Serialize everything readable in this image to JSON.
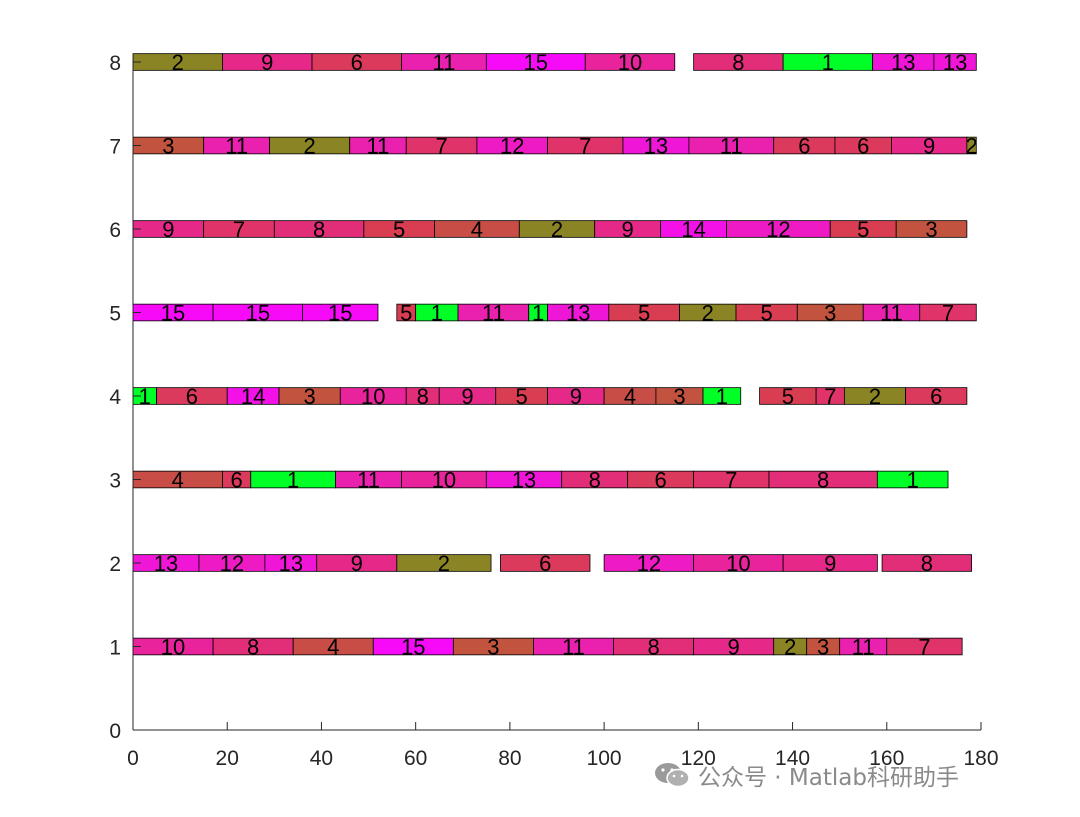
{
  "chart_data": {
    "type": "gantt",
    "title": "",
    "xlabel": "",
    "ylabel": "",
    "xlim": [
      0,
      180
    ],
    "ylim": [
      0,
      8
    ],
    "xticks": [
      "0",
      "20",
      "40",
      "60",
      "80",
      "100",
      "120",
      "140",
      "160",
      "180"
    ],
    "yticks": [
      "0",
      "1",
      "2",
      "3",
      "4",
      "5",
      "6",
      "7",
      "8"
    ],
    "bar_height": 0.2,
    "colors": {
      "1": "#00ff27",
      "2": "#8b8424",
      "3": "#c2533f",
      "4": "#c84d47",
      "5": "#d83d52",
      "6": "#dc3a5c",
      "7": "#e0336a",
      "8": "#e22d78",
      "9": "#e62889",
      "10": "#e8239c",
      "11": "#ea20ae",
      "12": "#ee1ac4",
      "13": "#f016d7",
      "14": "#f411e8",
      "15": "#f70af7"
    },
    "machines": [
      {
        "machine": 1,
        "tasks": [
          {
            "job": 10,
            "start": 0,
            "end": 17
          },
          {
            "job": 8,
            "start": 17,
            "end": 34
          },
          {
            "job": 4,
            "start": 34,
            "end": 51
          },
          {
            "job": 15,
            "start": 51,
            "end": 68
          },
          {
            "job": 3,
            "start": 68,
            "end": 85
          },
          {
            "job": 11,
            "start": 85,
            "end": 102
          },
          {
            "job": 8,
            "start": 102,
            "end": 119
          },
          {
            "job": 9,
            "start": 119,
            "end": 136
          },
          {
            "job": 2,
            "start": 136,
            "end": 143
          },
          {
            "job": 3,
            "start": 143,
            "end": 150
          },
          {
            "job": 11,
            "start": 150,
            "end": 160
          },
          {
            "job": 7,
            "start": 160,
            "end": 176
          }
        ]
      },
      {
        "machine": 2,
        "tasks": [
          {
            "job": 13,
            "start": 0,
            "end": 14
          },
          {
            "job": 12,
            "start": 14,
            "end": 28
          },
          {
            "job": 13,
            "start": 28,
            "end": 39
          },
          {
            "job": 9,
            "start": 39,
            "end": 56
          },
          {
            "job": 2,
            "start": 56,
            "end": 76
          },
          {
            "job": 6,
            "start": 78,
            "end": 97
          },
          {
            "job": 12,
            "start": 100,
            "end": 119
          },
          {
            "job": 10,
            "start": 119,
            "end": 138
          },
          {
            "job": 9,
            "start": 138,
            "end": 158
          },
          {
            "job": 8,
            "start": 159,
            "end": 178
          }
        ]
      },
      {
        "machine": 3,
        "tasks": [
          {
            "job": 4,
            "start": 0,
            "end": 19
          },
          {
            "job": 6,
            "start": 19,
            "end": 25
          },
          {
            "job": 1,
            "start": 25,
            "end": 43
          },
          {
            "job": 11,
            "start": 43,
            "end": 57
          },
          {
            "job": 10,
            "start": 57,
            "end": 75
          },
          {
            "job": 13,
            "start": 75,
            "end": 91
          },
          {
            "job": 8,
            "start": 91,
            "end": 105
          },
          {
            "job": 6,
            "start": 105,
            "end": 119
          },
          {
            "job": 7,
            "start": 119,
            "end": 135
          },
          {
            "job": 8,
            "start": 135,
            "end": 158
          },
          {
            "job": 1,
            "start": 158,
            "end": 173
          }
        ]
      },
      {
        "machine": 4,
        "tasks": [
          {
            "job": 1,
            "start": 0,
            "end": 5
          },
          {
            "job": 6,
            "start": 5,
            "end": 20
          },
          {
            "job": 14,
            "start": 20,
            "end": 31
          },
          {
            "job": 3,
            "start": 31,
            "end": 44
          },
          {
            "job": 10,
            "start": 44,
            "end": 58
          },
          {
            "job": 8,
            "start": 58,
            "end": 65
          },
          {
            "job": 9,
            "start": 65,
            "end": 77
          },
          {
            "job": 5,
            "start": 77,
            "end": 88
          },
          {
            "job": 9,
            "start": 88,
            "end": 100
          },
          {
            "job": 4,
            "start": 100,
            "end": 111
          },
          {
            "job": 3,
            "start": 111,
            "end": 121
          },
          {
            "job": 1,
            "start": 121,
            "end": 129
          },
          {
            "job": 5,
            "start": 133,
            "end": 145
          },
          {
            "job": 7,
            "start": 145,
            "end": 151
          },
          {
            "job": 2,
            "start": 151,
            "end": 164
          },
          {
            "job": 6,
            "start": 164,
            "end": 177
          }
        ]
      },
      {
        "machine": 5,
        "tasks": [
          {
            "job": 15,
            "start": 0,
            "end": 17
          },
          {
            "job": 15,
            "start": 17,
            "end": 36
          },
          {
            "job": 15,
            "start": 36,
            "end": 52
          },
          {
            "job": 5,
            "start": 56,
            "end": 60
          },
          {
            "job": 1,
            "start": 60,
            "end": 69
          },
          {
            "job": 11,
            "start": 69,
            "end": 84
          },
          {
            "job": 1,
            "start": 84,
            "end": 88
          },
          {
            "job": 13,
            "start": 88,
            "end": 101
          },
          {
            "job": 5,
            "start": 101,
            "end": 116
          },
          {
            "job": 2,
            "start": 116,
            "end": 128
          },
          {
            "job": 5,
            "start": 128,
            "end": 141
          },
          {
            "job": 3,
            "start": 141,
            "end": 155
          },
          {
            "job": 11,
            "start": 155,
            "end": 167
          },
          {
            "job": 7,
            "start": 167,
            "end": 179
          }
        ]
      },
      {
        "machine": 6,
        "tasks": [
          {
            "job": 9,
            "start": 0,
            "end": 15
          },
          {
            "job": 7,
            "start": 15,
            "end": 30
          },
          {
            "job": 8,
            "start": 30,
            "end": 49
          },
          {
            "job": 5,
            "start": 49,
            "end": 64
          },
          {
            "job": 4,
            "start": 64,
            "end": 82
          },
          {
            "job": 2,
            "start": 82,
            "end": 98
          },
          {
            "job": 9,
            "start": 98,
            "end": 112
          },
          {
            "job": 14,
            "start": 112,
            "end": 126
          },
          {
            "job": 12,
            "start": 126,
            "end": 148
          },
          {
            "job": 5,
            "start": 148,
            "end": 162
          },
          {
            "job": 3,
            "start": 162,
            "end": 177
          }
        ]
      },
      {
        "machine": 7,
        "tasks": [
          {
            "job": 3,
            "start": 0,
            "end": 15
          },
          {
            "job": 11,
            "start": 15,
            "end": 29
          },
          {
            "job": 2,
            "start": 29,
            "end": 46
          },
          {
            "job": 11,
            "start": 46,
            "end": 58
          },
          {
            "job": 7,
            "start": 58,
            "end": 73
          },
          {
            "job": 12,
            "start": 73,
            "end": 88
          },
          {
            "job": 7,
            "start": 88,
            "end": 104
          },
          {
            "job": 13,
            "start": 104,
            "end": 118
          },
          {
            "job": 11,
            "start": 118,
            "end": 136
          },
          {
            "job": 6,
            "start": 136,
            "end": 149
          },
          {
            "job": 6,
            "start": 149,
            "end": 161
          },
          {
            "job": 9,
            "start": 161,
            "end": 177
          },
          {
            "job": 2,
            "start": 177,
            "end": 179
          }
        ]
      },
      {
        "machine": 8,
        "tasks": [
          {
            "job": 2,
            "start": 0,
            "end": 19
          },
          {
            "job": 9,
            "start": 19,
            "end": 38
          },
          {
            "job": 6,
            "start": 38,
            "end": 57
          },
          {
            "job": 11,
            "start": 57,
            "end": 75
          },
          {
            "job": 15,
            "start": 75,
            "end": 96
          },
          {
            "job": 10,
            "start": 96,
            "end": 115
          },
          {
            "job": 8,
            "start": 119,
            "end": 138
          },
          {
            "job": 1,
            "start": 138,
            "end": 157
          },
          {
            "job": 13,
            "start": 157,
            "end": 170
          },
          {
            "job": 13,
            "start": 170,
            "end": 179
          }
        ]
      }
    ]
  },
  "watermark": {
    "text": "公众号 · Matlab科研助手",
    "icon": "wechat-icon"
  }
}
